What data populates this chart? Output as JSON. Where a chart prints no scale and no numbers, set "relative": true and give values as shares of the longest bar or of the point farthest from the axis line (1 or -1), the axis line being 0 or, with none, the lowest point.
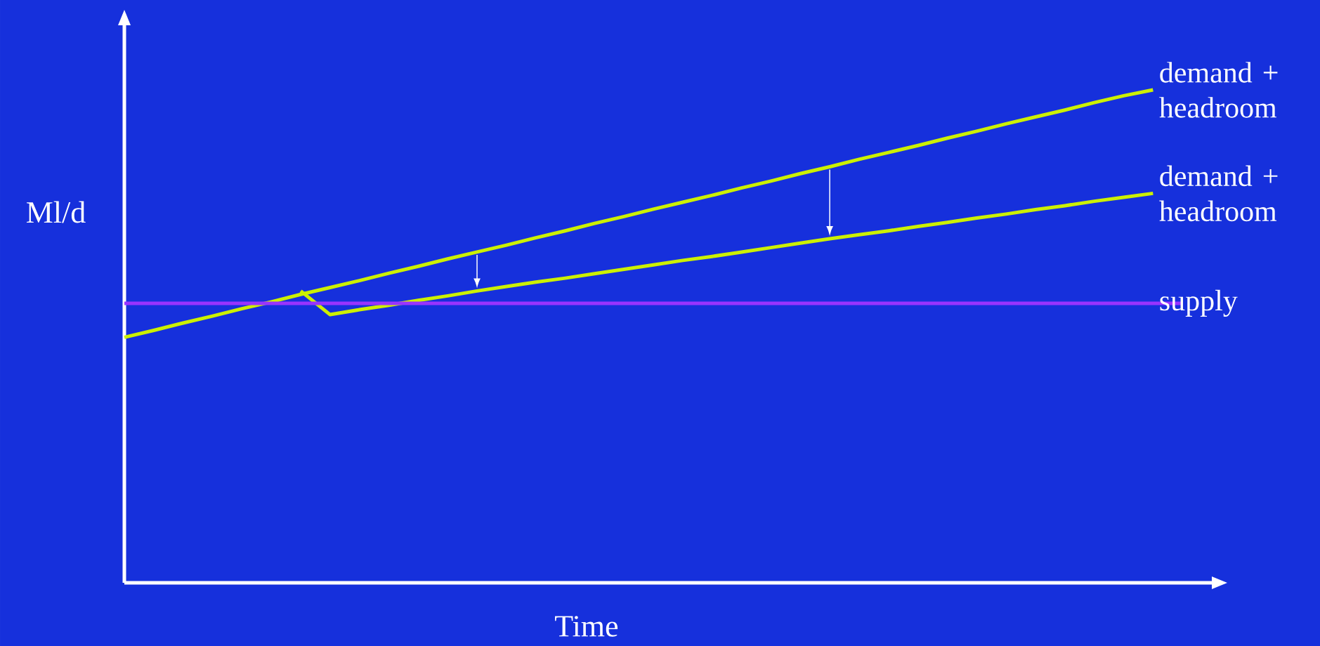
{
  "chart_data": {
    "type": "line",
    "relative": true,
    "xlabel": "Time",
    "ylabel": "Ml/d",
    "categories": [
      null,
      null,
      null,
      null,
      null,
      null,
      null,
      null,
      null,
      null,
      null,
      null,
      null,
      null,
      null,
      null,
      null,
      null,
      null,
      null,
      null,
      null,
      null,
      null,
      null,
      null,
      null,
      null,
      null,
      null,
      null,
      null,
      null,
      null,
      null,
      null,
      null
    ],
    "series": [
      {
        "name": "demand + headroom",
        "color": "#ccf000",
        "values": [
          0.498,
          0.512,
          0.527,
          0.541,
          0.556,
          0.57,
          0.585,
          0.599,
          0.613,
          0.628,
          0.642,
          0.657,
          0.671,
          0.685,
          0.7,
          0.714,
          0.729,
          0.743,
          0.758,
          0.772,
          0.786,
          0.801,
          0.815,
          0.83,
          0.844,
          0.859,
          0.873,
          0.887,
          0.902,
          0.916,
          0.931,
          0.945,
          0.959,
          0.974,
          0.988,
          1.0,
          null
        ]
      },
      {
        "name": "demand + headroom",
        "color": "#ccf000",
        "values": [
          null,
          null,
          null,
          null,
          null,
          null,
          0.592,
          0.544,
          0.554,
          0.563,
          0.573,
          0.582,
          0.592,
          0.601,
          0.61,
          0.618,
          0.627,
          0.636,
          0.645,
          0.654,
          0.662,
          0.671,
          0.68,
          0.689,
          0.698,
          0.706,
          0.714,
          0.723,
          0.731,
          0.74,
          0.748,
          0.757,
          0.765,
          0.774,
          0.782,
          0.79,
          null
        ]
      },
      {
        "name": "supply",
        "color": "#9933ff",
        "values": [
          0.567,
          0.567,
          0.567,
          0.567,
          0.567,
          0.567,
          0.567,
          0.567,
          0.567,
          0.567,
          0.567,
          0.567,
          0.567,
          0.567,
          0.567,
          0.567,
          0.567,
          0.567,
          0.567,
          0.567,
          0.567,
          0.567,
          0.567,
          0.567,
          0.567,
          0.567,
          0.567,
          0.567,
          0.567,
          0.567,
          0.567,
          0.567,
          0.567,
          0.567,
          0.567,
          0.567,
          0.567
        ]
      }
    ]
  }
}
